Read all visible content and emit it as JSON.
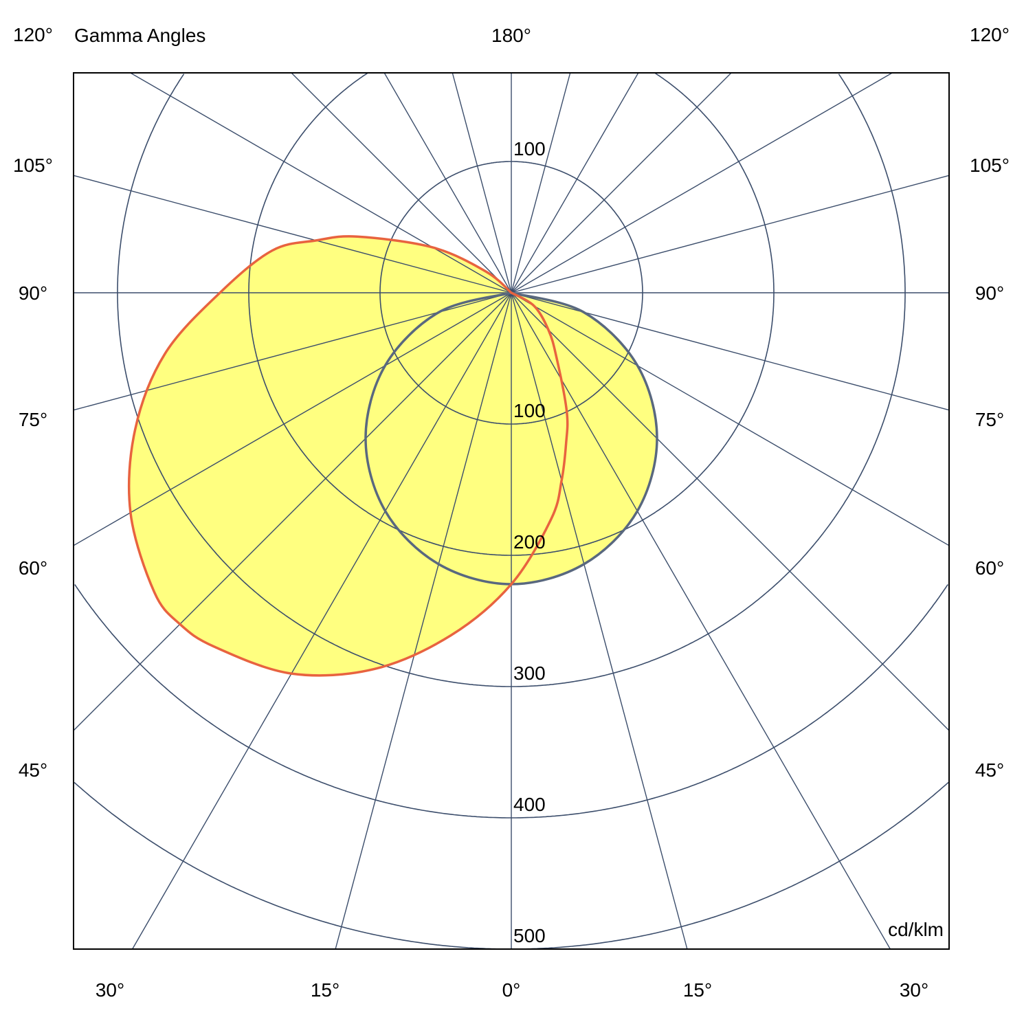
{
  "chart_data": {
    "type": "polar",
    "title": "Gamma Angles",
    "unit_label": "cd/klm",
    "radial_ticks": [
      100,
      200,
      300,
      400,
      500
    ],
    "radial_range": [
      0,
      500
    ],
    "angle_grid_step_deg": 15,
    "grid": true,
    "top_angle_label": "180°",
    "side_angle_labels": [
      "120°",
      "105°",
      "90°",
      "75°",
      "60°",
      "45°"
    ],
    "bottom_angle_labels": [
      "30°",
      "15°",
      "0°",
      "15°",
      "30°"
    ],
    "upper_ring_label": "100",
    "colors": {
      "grid": "#3b4d6b",
      "fill": "#ffff80",
      "series_1": "#e8633f",
      "series_2": "#59687f"
    },
    "series": [
      {
        "gamma": [
          -90,
          -60,
          -45,
          -35,
          -25,
          -20,
          -15,
          -10,
          0,
          10,
          20,
          30,
          40,
          45,
          50,
          60,
          70,
          80,
          90,
          100,
          105,
          110,
          120,
          130,
          135
        ],
        "intensity": [
          0,
          20,
          40,
          60,
          100,
          122,
          148,
          175,
          222,
          265,
          305,
          335,
          352,
          357,
          355,
          335,
          305,
          268,
          222,
          185,
          154,
          125,
          69,
          25,
          0
        ]
      },
      {
        "gamma": [
          -90,
          -75,
          -60,
          -45,
          -30,
          -15,
          0,
          15,
          30,
          45,
          60,
          75,
          90
        ],
        "intensity": [
          0,
          57,
          111,
          157,
          192,
          214,
          222,
          214,
          192,
          157,
          111,
          57,
          0
        ]
      }
    ]
  }
}
